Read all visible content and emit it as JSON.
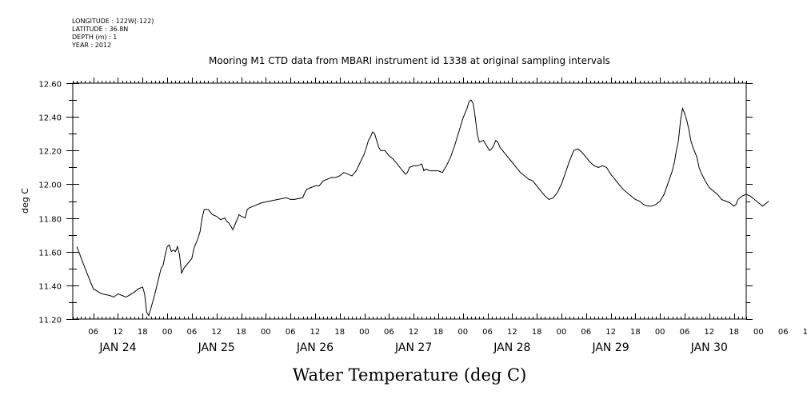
{
  "meta": {
    "longitude": "LONGITUDE : 122W(-122)",
    "latitude": "LATITUDE : 36.8N",
    "depth": "DEPTH (m) : 1",
    "year": "YEAR : 2012"
  },
  "chart_data": {
    "type": "line",
    "title": "Mooring M1 CTD data from MBARI instrument id 1338 at original sampling intervals",
    "xlabel": "Water Temperature (deg C)",
    "ylabel": "deg C",
    "ylim": [
      11.2,
      12.6
    ],
    "y_ticks": [
      "11.20",
      "11.40",
      "11.60",
      "11.80",
      "12.00",
      "12.20",
      "12.40",
      "12.60"
    ],
    "x_hour_ticks": [
      "06",
      "12",
      "18",
      "00",
      "06",
      "12",
      "18",
      "00",
      "06",
      "12",
      "18",
      "00",
      "06",
      "12",
      "18",
      "00",
      "06",
      "12",
      "18",
      "00",
      "06",
      "12",
      "18",
      "00",
      "06",
      "12",
      "18",
      "00",
      "06",
      "12",
      "18"
    ],
    "x_day_labels": [
      "JAN 24",
      "JAN 25",
      "JAN 26",
      "JAN 27",
      "JAN 28",
      "JAN 29",
      "JAN 30"
    ],
    "x_start": "2012-01-24 01:00",
    "x_end": "2012-01-30 20:00",
    "x_unit": "hours",
    "series": [
      {
        "values": [
          [
            1,
            11.63
          ],
          [
            3,
            11.5
          ],
          [
            5,
            11.38
          ],
          [
            7,
            11.35
          ],
          [
            9,
            11.34
          ],
          [
            10,
            11.33
          ],
          [
            11,
            11.35
          ],
          [
            12,
            11.34
          ],
          [
            13,
            11.33
          ],
          [
            15,
            11.36
          ],
          [
            16,
            11.38
          ],
          [
            17,
            11.39
          ],
          [
            17.5,
            11.35
          ],
          [
            18,
            11.24
          ],
          [
            18.5,
            11.22
          ],
          [
            19,
            11.26
          ],
          [
            20,
            11.35
          ],
          [
            21,
            11.45
          ],
          [
            21.5,
            11.5
          ],
          [
            22,
            11.52
          ],
          [
            22.5,
            11.58
          ],
          [
            23,
            11.63
          ],
          [
            23.5,
            11.64
          ],
          [
            24,
            11.6
          ],
          [
            24.5,
            11.61
          ],
          [
            25,
            11.6
          ],
          [
            25.5,
            11.63
          ],
          [
            26,
            11.58
          ],
          [
            26.5,
            11.47
          ],
          [
            27,
            11.5
          ],
          [
            28,
            11.53
          ],
          [
            29,
            11.56
          ],
          [
            29.5,
            11.62
          ],
          [
            30,
            11.65
          ],
          [
            30.5,
            11.68
          ],
          [
            31,
            11.72
          ],
          [
            31.5,
            11.8
          ],
          [
            32,
            11.85
          ],
          [
            33,
            11.85
          ],
          [
            34,
            11.82
          ],
          [
            35,
            11.81
          ],
          [
            35.5,
            11.8
          ],
          [
            36,
            11.79
          ],
          [
            37,
            11.8
          ],
          [
            37.5,
            11.78
          ],
          [
            38,
            11.77
          ],
          [
            38.5,
            11.75
          ],
          [
            39,
            11.73
          ],
          [
            39.5,
            11.76
          ],
          [
            40,
            11.79
          ],
          [
            40.5,
            11.82
          ],
          [
            41,
            11.81
          ],
          [
            42,
            11.8
          ],
          [
            42.5,
            11.85
          ],
          [
            43,
            11.86
          ],
          [
            44,
            11.87
          ],
          [
            46,
            11.89
          ],
          [
            48,
            11.9
          ],
          [
            50,
            11.91
          ],
          [
            52,
            11.92
          ],
          [
            53,
            11.91
          ],
          [
            54,
            11.91
          ],
          [
            56,
            11.92
          ],
          [
            56.5,
            11.95
          ],
          [
            57,
            11.97
          ],
          [
            58,
            11.98
          ],
          [
            59,
            11.99
          ],
          [
            60,
            11.99
          ],
          [
            61,
            12.02
          ],
          [
            62,
            12.03
          ],
          [
            63,
            12.04
          ],
          [
            64,
            12.04
          ],
          [
            65,
            12.05
          ],
          [
            66,
            12.07
          ],
          [
            67,
            12.06
          ],
          [
            68,
            12.05
          ],
          [
            69,
            12.08
          ],
          [
            70,
            12.13
          ],
          [
            71,
            12.18
          ],
          [
            71.5,
            12.22
          ],
          [
            72,
            12.26
          ],
          [
            72.5,
            12.28
          ],
          [
            73,
            12.31
          ],
          [
            73.5,
            12.3
          ],
          [
            74,
            12.26
          ],
          [
            74.5,
            12.22
          ],
          [
            75,
            12.2
          ],
          [
            76,
            12.2
          ],
          [
            77,
            12.17
          ],
          [
            78,
            12.15
          ],
          [
            79,
            12.12
          ],
          [
            80,
            12.09
          ],
          [
            81,
            12.06
          ],
          [
            81.5,
            12.07
          ],
          [
            82,
            12.1
          ],
          [
            83,
            12.11
          ],
          [
            84,
            12.11
          ],
          [
            85,
            12.12
          ],
          [
            85.5,
            12.08
          ],
          [
            86,
            12.09
          ],
          [
            87,
            12.08
          ],
          [
            88,
            12.08
          ],
          [
            89,
            12.08
          ],
          [
            90,
            12.07
          ],
          [
            91,
            12.11
          ],
          [
            92,
            12.16
          ],
          [
            93,
            12.23
          ],
          [
            94,
            12.31
          ],
          [
            95,
            12.39
          ],
          [
            96,
            12.45
          ],
          [
            96.5,
            12.49
          ],
          [
            97,
            12.5
          ],
          [
            97.5,
            12.48
          ],
          [
            98,
            12.4
          ],
          [
            98.5,
            12.3
          ],
          [
            99,
            12.25
          ],
          [
            100,
            12.26
          ],
          [
            100.5,
            12.24
          ],
          [
            101,
            12.22
          ],
          [
            101.5,
            12.2
          ],
          [
            102,
            12.21
          ],
          [
            102.5,
            12.23
          ],
          [
            103,
            12.26
          ],
          [
            103.5,
            12.25
          ],
          [
            104,
            12.22
          ],
          [
            105,
            12.19
          ],
          [
            106,
            12.16
          ],
          [
            107,
            12.13
          ],
          [
            108,
            12.1
          ],
          [
            109,
            12.07
          ],
          [
            110,
            12.05
          ],
          [
            111,
            12.03
          ],
          [
            112,
            12.02
          ],
          [
            113,
            11.99
          ],
          [
            114,
            11.96
          ],
          [
            115,
            11.93
          ],
          [
            116,
            11.91
          ],
          [
            117,
            11.92
          ],
          [
            118,
            11.95
          ],
          [
            119,
            12.0
          ],
          [
            120,
            12.07
          ],
          [
            121,
            12.14
          ],
          [
            122,
            12.2
          ],
          [
            123,
            12.21
          ],
          [
            124,
            12.19
          ],
          [
            125,
            12.16
          ],
          [
            126,
            12.13
          ],
          [
            127,
            12.11
          ],
          [
            128,
            12.1
          ],
          [
            129,
            12.11
          ],
          [
            130,
            12.1
          ],
          [
            131,
            12.06
          ],
          [
            132,
            12.03
          ],
          [
            133,
            12.0
          ],
          [
            134,
            11.97
          ],
          [
            135,
            11.95
          ],
          [
            136,
            11.93
          ],
          [
            137,
            11.91
          ],
          [
            138,
            11.9
          ],
          [
            139,
            11.88
          ],
          [
            140,
            11.87
          ],
          [
            141,
            11.87
          ],
          [
            142,
            11.88
          ],
          [
            143,
            11.9
          ],
          [
            144,
            11.94
          ],
          [
            145,
            12.01
          ],
          [
            146,
            12.08
          ],
          [
            146.5,
            12.13
          ],
          [
            147,
            12.2
          ],
          [
            147.5,
            12.26
          ],
          [
            148,
            12.38
          ],
          [
            148.5,
            12.45
          ],
          [
            149,
            12.42
          ],
          [
            149.5,
            12.38
          ],
          [
            150,
            12.33
          ],
          [
            150.5,
            12.26
          ],
          [
            151,
            12.22
          ],
          [
            152,
            12.16
          ],
          [
            152.5,
            12.1
          ],
          [
            153,
            12.07
          ],
          [
            154,
            12.02
          ],
          [
            155,
            11.98
          ],
          [
            156,
            11.96
          ],
          [
            157,
            11.94
          ],
          [
            158,
            11.91
          ],
          [
            159,
            11.9
          ],
          [
            160,
            11.89
          ],
          [
            161,
            11.87
          ],
          [
            161.5,
            11.88
          ],
          [
            162,
            11.91
          ],
          [
            163,
            11.93
          ],
          [
            164,
            11.94
          ],
          [
            165,
            11.93
          ],
          [
            166,
            11.91
          ],
          [
            167,
            11.89
          ],
          [
            168,
            11.87
          ],
          [
            169,
            11.89
          ],
          [
            169.5,
            11.9
          ]
        ]
      }
    ]
  }
}
